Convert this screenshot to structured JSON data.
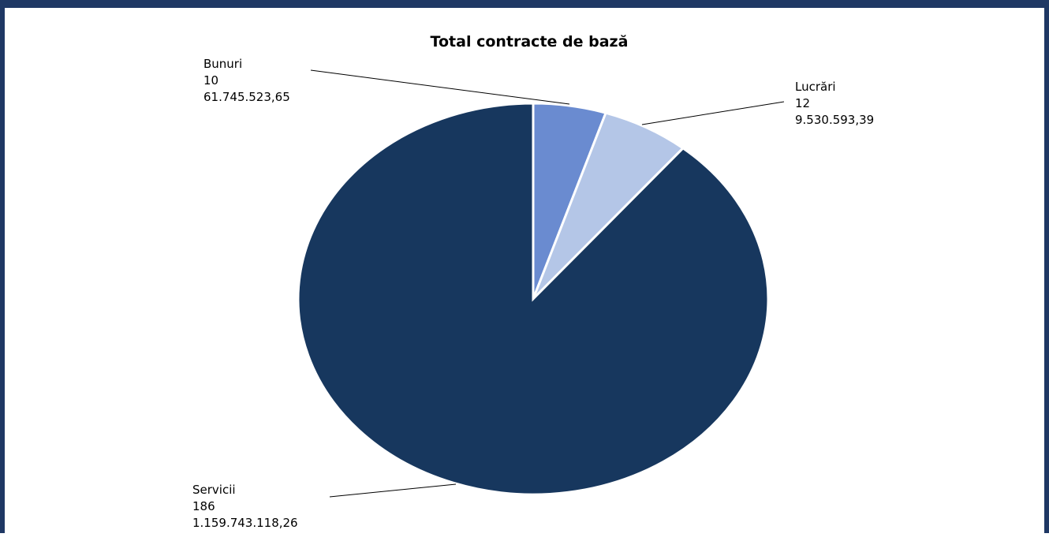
{
  "chart_data": {
    "type": "pie",
    "title": "Total contracte de bază",
    "slices": [
      {
        "name": "Bunuri",
        "count_label": "10",
        "value_label": "61.745.523,65",
        "value": 61745523.65,
        "color": "#6a8bd0"
      },
      {
        "name": "Lucrări",
        "count_label": "12",
        "value_label": "9.530.593,39",
        "value": 9530593.39,
        "color": "#b4c6e7"
      },
      {
        "name": "Servicii",
        "count_label": "186",
        "value_label": "1.159.743.118,26",
        "value": 1159743118.26,
        "color": "#17375e"
      }
    ],
    "slice_fractions": [
      0.05,
      0.06,
      0.89
    ],
    "start_angle_deg": 0,
    "direction": "clockwise",
    "legend": "none",
    "data_labels": "outside-with-leader-lines"
  },
  "colors": {
    "frame": "#1f3864",
    "background": "#ffffff"
  }
}
